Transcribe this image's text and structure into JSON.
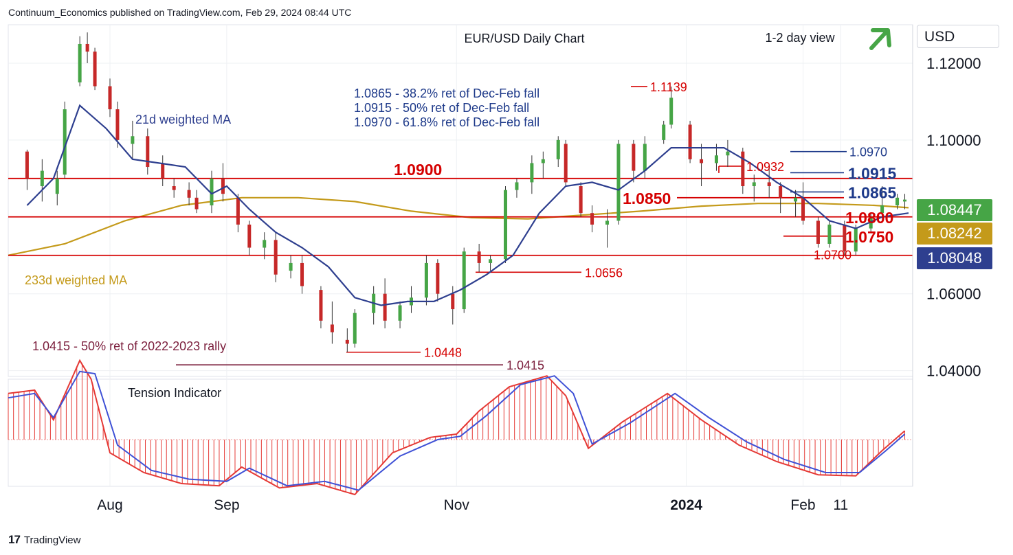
{
  "header": {
    "attribution": "Continuum_Economics published on TradingView.com, Feb 29, 2024 08:44 UTC"
  },
  "footer": {
    "brand": "TradingView",
    "logo_text": "17"
  },
  "currency_button": "USD",
  "colors": {
    "up": "#46a546",
    "down": "#c62828",
    "level_red": "#d50000",
    "fib_blue": "#1e3a8a",
    "ma21": "#2e3f8f",
    "ma233": "#c49a1a",
    "tension_fill": "#e53935",
    "tension_line": "#3f51d6",
    "grid": "#eef0f3",
    "maroon": "#7b1e3c"
  },
  "chart_data": [
    {
      "type": "candlestick",
      "title": "EUR/USD Daily Chart",
      "subtitle": "1-2 day view",
      "view_arrow": "up",
      "y_ticks": [
        "1.12000",
        "1.10000",
        "1.06000",
        "1.04000"
      ],
      "y_tick_values": [
        1.12,
        1.1,
        1.06,
        1.04
      ],
      "ylim": [
        1.0385,
        1.13
      ],
      "x_ticks": [
        "Aug",
        "Sep",
        "Nov",
        "2024",
        "Feb",
        "11"
      ],
      "x_tick_dates": [
        "2023-08-01",
        "2023-09-01",
        "2023-11-01",
        "2024-01-01",
        "2024-02-01",
        "2024-02-11"
      ],
      "x_range": [
        "2023-07-05",
        "2024-02-29"
      ],
      "series": [
        {
          "name": "21d weighted MA",
          "label": "21d weighted MA",
          "color": "#2e3f8f",
          "points": [
            [
              "2023-07-10",
              1.083
            ],
            [
              "2023-07-17",
              1.09
            ],
            [
              "2023-07-24",
              1.109
            ],
            [
              "2023-07-31",
              1.103
            ],
            [
              "2023-08-07",
              1.095
            ],
            [
              "2023-08-14",
              1.094
            ],
            [
              "2023-08-21",
              1.093
            ],
            [
              "2023-08-28",
              1.086
            ],
            [
              "2023-09-01",
              1.088
            ],
            [
              "2023-09-07",
              1.082
            ],
            [
              "2023-09-14",
              1.076
            ],
            [
              "2023-09-21",
              1.072
            ],
            [
              "2023-09-28",
              1.067
            ],
            [
              "2023-10-05",
              1.059
            ],
            [
              "2023-10-12",
              1.057
            ],
            [
              "2023-10-19",
              1.058
            ],
            [
              "2023-10-26",
              1.058
            ],
            [
              "2023-11-02",
              1.061
            ],
            [
              "2023-11-09",
              1.065
            ],
            [
              "2023-11-16",
              1.07
            ],
            [
              "2023-11-23",
              1.081
            ],
            [
              "2023-11-30",
              1.088
            ],
            [
              "2023-12-07",
              1.089
            ],
            [
              "2023-12-14",
              1.087
            ],
            [
              "2023-12-21",
              1.092
            ],
            [
              "2023-12-28",
              1.098
            ],
            [
              "2024-01-04",
              1.098
            ],
            [
              "2024-01-11",
              1.098
            ],
            [
              "2024-01-18",
              1.094
            ],
            [
              "2024-01-25",
              1.089
            ],
            [
              "2024-02-01",
              1.085
            ],
            [
              "2024-02-08",
              1.079
            ],
            [
              "2024-02-15",
              1.077
            ],
            [
              "2024-02-22",
              1.08
            ],
            [
              "2024-02-29",
              1.081
            ]
          ]
        },
        {
          "name": "233d weighted MA",
          "label": "233d weighted MA",
          "color": "#c49a1a",
          "points": [
            [
              "2023-07-05",
              1.07
            ],
            [
              "2023-07-20",
              1.073
            ],
            [
              "2023-08-05",
              1.079
            ],
            [
              "2023-08-20",
              1.083
            ],
            [
              "2023-09-05",
              1.085
            ],
            [
              "2023-09-20",
              1.085
            ],
            [
              "2023-10-05",
              1.084
            ],
            [
              "2023-10-20",
              1.0815
            ],
            [
              "2023-11-05",
              1.0798
            ],
            [
              "2023-11-20",
              1.0795
            ],
            [
              "2023-12-05",
              1.0805
            ],
            [
              "2023-12-20",
              1.0815
            ],
            [
              "2024-01-05",
              1.0828
            ],
            [
              "2024-01-20",
              1.0835
            ],
            [
              "2024-02-05",
              1.0835
            ],
            [
              "2024-02-20",
              1.083
            ],
            [
              "2024-02-29",
              1.0824
            ]
          ]
        }
      ],
      "candles": [
        [
          "2023-07-10",
          1.097,
          1.0975,
          1.087,
          1.09
        ],
        [
          "2023-07-14",
          1.088,
          1.095,
          1.084,
          1.092
        ],
        [
          "2023-07-18",
          1.086,
          1.092,
          1.083,
          1.09
        ],
        [
          "2023-07-20",
          1.091,
          1.11,
          1.09,
          1.108
        ],
        [
          "2023-07-24",
          1.115,
          1.127,
          1.114,
          1.125
        ],
        [
          "2023-07-26",
          1.125,
          1.128,
          1.12,
          1.123
        ],
        [
          "2023-07-28",
          1.123,
          1.124,
          1.113,
          1.114
        ],
        [
          "2023-08-01",
          1.114,
          1.116,
          1.106,
          1.108
        ],
        [
          "2023-08-03",
          1.108,
          1.11,
          1.098,
          1.1
        ],
        [
          "2023-08-07",
          1.099,
          1.105,
          1.095,
          1.101
        ],
        [
          "2023-08-11",
          1.101,
          1.103,
          1.091,
          1.093
        ],
        [
          "2023-08-15",
          1.094,
          1.096,
          1.088,
          1.09
        ],
        [
          "2023-08-18",
          1.088,
          1.09,
          1.085,
          1.087
        ],
        [
          "2023-08-22",
          1.087,
          1.089,
          1.083,
          1.085
        ],
        [
          "2023-08-24",
          1.085,
          1.087,
          1.081,
          1.082
        ],
        [
          "2023-08-28",
          1.083,
          1.092,
          1.081,
          1.09
        ],
        [
          "2023-08-31",
          1.09,
          1.094,
          1.084,
          1.086
        ],
        [
          "2023-09-04",
          1.085,
          1.086,
          1.076,
          1.078
        ],
        [
          "2023-09-07",
          1.078,
          1.079,
          1.07,
          1.072
        ],
        [
          "2023-09-11",
          1.072,
          1.076,
          1.069,
          1.074
        ],
        [
          "2023-09-14",
          1.074,
          1.076,
          1.063,
          1.065
        ],
        [
          "2023-09-18",
          1.066,
          1.07,
          1.064,
          1.068
        ],
        [
          "2023-09-21",
          1.068,
          1.07,
          1.06,
          1.062
        ],
        [
          "2023-09-26",
          1.061,
          1.062,
          1.051,
          1.053
        ],
        [
          "2023-09-29",
          1.052,
          1.058,
          1.047,
          1.05
        ],
        [
          "2023-10-03",
          1.048,
          1.051,
          1.0448,
          1.047
        ],
        [
          "2023-10-05",
          1.047,
          1.056,
          1.046,
          1.055
        ],
        [
          "2023-10-10",
          1.055,
          1.062,
          1.052,
          1.06
        ],
        [
          "2023-10-13",
          1.06,
          1.064,
          1.051,
          1.053
        ],
        [
          "2023-10-17",
          1.053,
          1.058,
          1.051,
          1.057
        ],
        [
          "2023-10-20",
          1.057,
          1.062,
          1.055,
          1.059
        ],
        [
          "2023-10-24",
          1.059,
          1.07,
          1.057,
          1.068
        ],
        [
          "2023-10-27",
          1.068,
          1.069,
          1.058,
          1.06
        ],
        [
          "2023-10-31",
          1.06,
          1.062,
          1.052,
          1.056
        ],
        [
          "2023-11-03",
          1.056,
          1.072,
          1.055,
          1.071
        ],
        [
          "2023-11-07",
          1.071,
          1.073,
          1.0656,
          1.068
        ],
        [
          "2023-11-10",
          1.068,
          1.07,
          1.066,
          1.069
        ],
        [
          "2023-11-14",
          1.069,
          1.088,
          1.068,
          1.087
        ],
        [
          "2023-11-17",
          1.087,
          1.09,
          1.085,
          1.089
        ],
        [
          "2023-11-21",
          1.089,
          1.096,
          1.086,
          1.094
        ],
        [
          "2023-11-24",
          1.094,
          1.097,
          1.09,
          1.095
        ],
        [
          "2023-11-28",
          1.095,
          1.101,
          1.093,
          1.1
        ],
        [
          "2023-11-30",
          1.099,
          1.1,
          1.088,
          1.089
        ],
        [
          "2023-12-04",
          1.088,
          1.089,
          1.08,
          1.081
        ],
        [
          "2023-12-07",
          1.081,
          1.083,
          1.076,
          1.078
        ],
        [
          "2023-12-11",
          1.078,
          1.082,
          1.072,
          1.079
        ],
        [
          "2023-12-14",
          1.079,
          1.1,
          1.078,
          1.099
        ],
        [
          "2023-12-18",
          1.099,
          1.1,
          1.089,
          1.092
        ],
        [
          "2023-12-21",
          1.092,
          1.101,
          1.09,
          1.099
        ],
        [
          "2023-12-26",
          1.1,
          1.105,
          1.099,
          1.104
        ],
        [
          "2023-12-28",
          1.104,
          1.1139,
          1.103,
          1.111
        ],
        [
          "2024-01-02",
          1.104,
          1.105,
          1.094,
          1.095
        ],
        [
          "2024-01-05",
          1.095,
          1.099,
          1.088,
          1.094
        ],
        [
          "2024-01-09",
          1.094,
          1.099,
          1.092,
          1.096
        ],
        [
          "2024-01-12",
          1.096,
          1.1,
          1.093,
          1.097
        ],
        [
          "2024-01-16",
          1.097,
          1.098,
          1.086,
          1.088
        ],
        [
          "2024-01-19",
          1.088,
          1.091,
          1.084,
          1.089
        ],
        [
          "2024-01-23",
          1.089,
          1.0932,
          1.085,
          1.088
        ],
        [
          "2024-01-26",
          1.088,
          1.089,
          1.081,
          1.085
        ],
        [
          "2024-01-30",
          1.084,
          1.087,
          1.08,
          1.085
        ],
        [
          "2024-02-01",
          1.085,
          1.089,
          1.078,
          1.079
        ],
        [
          "2024-02-05",
          1.079,
          1.08,
          1.072,
          1.073
        ],
        [
          "2024-02-08",
          1.073,
          1.079,
          1.072,
          1.078
        ],
        [
          "2024-02-12",
          1.078,
          1.079,
          1.07,
          1.071
        ],
        [
          "2024-02-15",
          1.071,
          1.078,
          1.07,
          1.077
        ],
        [
          "2024-02-19",
          1.077,
          1.081,
          1.076,
          1.08
        ],
        [
          "2024-02-22",
          1.081,
          1.088,
          1.08,
          1.083
        ],
        [
          "2024-02-26",
          1.083,
          1.086,
          1.082,
          1.085
        ],
        [
          "2024-02-28",
          1.084,
          1.086,
          1.082,
          1.0845
        ]
      ],
      "levels": [
        {
          "value": 1.097,
          "label": "1.0970",
          "color": "#1e3a8a",
          "style": "fib"
        },
        {
          "value": 1.0915,
          "label": "1.0915",
          "color": "#1e3a8a",
          "style": "fib"
        },
        {
          "value": 1.0865,
          "label": "1.0865",
          "color": "#1e3a8a",
          "style": "fib"
        },
        {
          "value": 1.09,
          "label": "1.0900",
          "color": "#d50000",
          "style": "full"
        },
        {
          "value": 1.085,
          "label": "1.0850",
          "color": "#d50000",
          "style": "partial"
        },
        {
          "value": 1.08,
          "label": "1.0800",
          "color": "#d50000",
          "style": "full"
        },
        {
          "value": 1.075,
          "label": "1.0750",
          "color": "#d50000",
          "style": "partial"
        },
        {
          "value": 1.07,
          "label": "1.0700",
          "color": "#d50000",
          "style": "full"
        },
        {
          "value": 1.1139,
          "label": "1.1139",
          "color": "#d50000",
          "style": "marker"
        },
        {
          "value": 1.0932,
          "label": "1.0932",
          "color": "#d50000",
          "style": "marker"
        },
        {
          "value": 1.0656,
          "label": "1.0656",
          "color": "#d50000",
          "style": "marker"
        },
        {
          "value": 1.0448,
          "label": "1.0448",
          "color": "#d50000",
          "style": "marker"
        },
        {
          "value": 1.0415,
          "label": "1.0415",
          "color": "#7b1e3c",
          "style": "marker"
        }
      ],
      "annotations": [
        "1.0865 - 38.2% ret of Dec-Feb fall",
        "1.0915 - 50% ret of Dec-Feb fall",
        "1.0970 - 61.8% ret of Dec-Feb fall",
        "1.0415 - 50% ret of 2022-2023 rally"
      ],
      "price_tags": [
        {
          "label": "1.08447",
          "bg": "#46a546",
          "fg": "#ffffff"
        },
        {
          "label": "1.08242",
          "bg": "#c49a1a",
          "fg": "#ffffff"
        },
        {
          "label": "1.08048",
          "bg": "#2e3f8f",
          "fg": "#ffffff"
        }
      ]
    },
    {
      "type": "histogram",
      "title": "Tension Indicator",
      "histogram_color": "#e53935",
      "signal_color": "#3f51d6",
      "points": [
        [
          "2023-07-05",
          0.42
        ],
        [
          "2023-07-12",
          0.45
        ],
        [
          "2023-07-17",
          0.18
        ],
        [
          "2023-07-24",
          0.72
        ],
        [
          "2023-07-27",
          0.55
        ],
        [
          "2023-08-01",
          -0.12
        ],
        [
          "2023-08-10",
          -0.3
        ],
        [
          "2023-08-20",
          -0.4
        ],
        [
          "2023-08-30",
          -0.42
        ],
        [
          "2023-09-05",
          -0.25
        ],
        [
          "2023-09-15",
          -0.44
        ],
        [
          "2023-09-25",
          -0.4
        ],
        [
          "2023-10-05",
          -0.5
        ],
        [
          "2023-10-15",
          -0.12
        ],
        [
          "2023-10-25",
          0.02
        ],
        [
          "2023-11-01",
          0.05
        ],
        [
          "2023-11-07",
          0.26
        ],
        [
          "2023-11-15",
          0.48
        ],
        [
          "2023-11-25",
          0.58
        ],
        [
          "2023-11-30",
          0.4
        ],
        [
          "2023-12-06",
          -0.08
        ],
        [
          "2023-12-15",
          0.16
        ],
        [
          "2023-12-27",
          0.42
        ],
        [
          "2024-01-05",
          0.18
        ],
        [
          "2024-01-15",
          -0.05
        ],
        [
          "2024-01-25",
          -0.2
        ],
        [
          "2024-02-05",
          -0.32
        ],
        [
          "2024-02-15",
          -0.33
        ],
        [
          "2024-02-22",
          -0.1
        ],
        [
          "2024-02-28",
          0.08
        ]
      ],
      "signal_points": [
        [
          "2023-07-05",
          0.38
        ],
        [
          "2023-07-12",
          0.42
        ],
        [
          "2023-07-17",
          0.2
        ],
        [
          "2023-07-24",
          0.62
        ],
        [
          "2023-07-28",
          0.6
        ],
        [
          "2023-08-03",
          -0.05
        ],
        [
          "2023-08-12",
          -0.28
        ],
        [
          "2023-08-22",
          -0.36
        ],
        [
          "2023-09-01",
          -0.38
        ],
        [
          "2023-09-07",
          -0.26
        ],
        [
          "2023-09-17",
          -0.42
        ],
        [
          "2023-09-27",
          -0.38
        ],
        [
          "2023-10-06",
          -0.46
        ],
        [
          "2023-10-17",
          -0.15
        ],
        [
          "2023-10-27",
          0.0
        ],
        [
          "2023-11-02",
          0.03
        ],
        [
          "2023-11-09",
          0.22
        ],
        [
          "2023-11-18",
          0.5
        ],
        [
          "2023-11-27",
          0.58
        ],
        [
          "2023-12-02",
          0.42
        ],
        [
          "2023-12-07",
          -0.04
        ],
        [
          "2023-12-17",
          0.15
        ],
        [
          "2023-12-29",
          0.42
        ],
        [
          "2024-01-07",
          0.2
        ],
        [
          "2024-01-17",
          -0.02
        ],
        [
          "2024-01-27",
          -0.18
        ],
        [
          "2024-02-07",
          -0.3
        ],
        [
          "2024-02-16",
          -0.3
        ],
        [
          "2024-02-23",
          -0.1
        ],
        [
          "2024-02-28",
          0.05
        ]
      ]
    }
  ]
}
